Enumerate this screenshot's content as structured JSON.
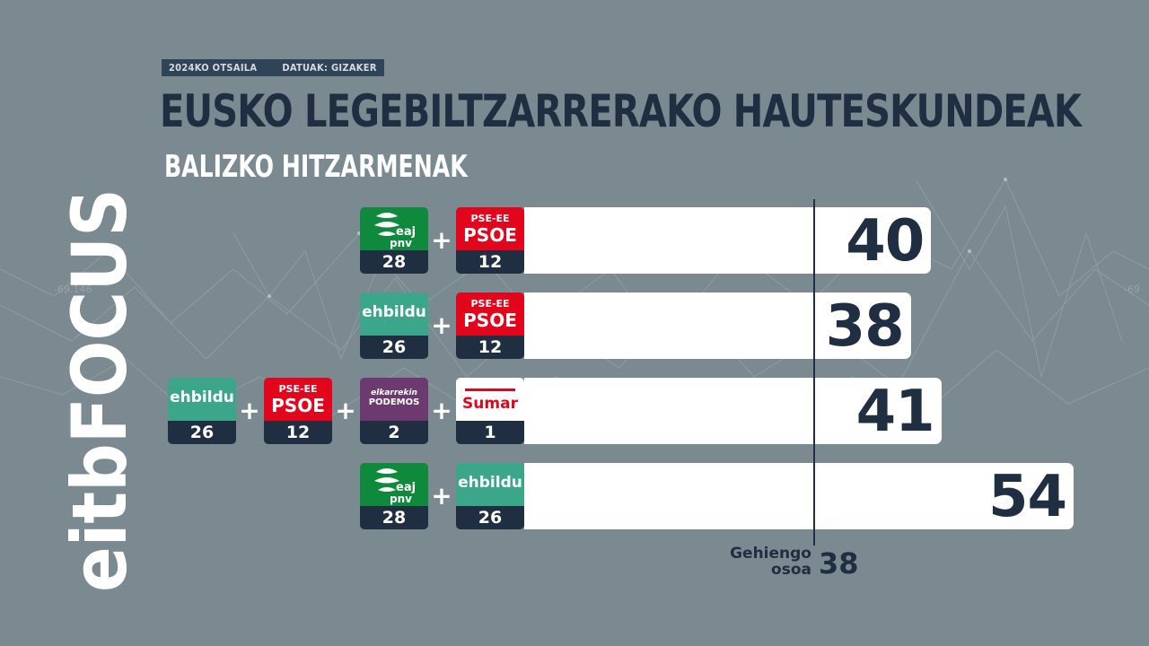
{
  "header": {
    "date": "2024KO OTSAILA",
    "source": "DATUAK: GIZAKER",
    "title": "EUSKO LEGEBILTZARRERAKO HAUTESKUNDEAK",
    "subtitle": "BALIZKO HITZARMENAK"
  },
  "brand": {
    "logo_text": "eitbFOCUS",
    "color": "#ffffff"
  },
  "colors": {
    "background": "#7b8991",
    "dark": "#1f2e40",
    "pnv": "#0f8a3c",
    "psoe": "#e3051b",
    "bildu": "#3ca68a",
    "podemos": "#6c3a6e",
    "sumar": "#e3051b"
  },
  "parties": {
    "pnv": {
      "logo_lines": [
        "eaj",
        "pnv"
      ]
    },
    "psoe": {
      "logo_lines": [
        "PSE-EE",
        "PSOE"
      ]
    },
    "bildu": {
      "logo_text": "ehbildu"
    },
    "podemos": {
      "logo_lines": [
        "elkarrekin",
        "PODEMOS"
      ]
    },
    "sumar": {
      "logo_text": "Sumar"
    }
  },
  "majority": {
    "label_line1": "Gehiengo",
    "label_line2": "osoa",
    "value": 38
  },
  "chart_data": {
    "type": "bar",
    "title": "BALIZKO HITZARMENAK",
    "xlim": [
      0,
      54
    ],
    "reference_line": 38,
    "rows": [
      {
        "members": [
          {
            "party": "pnv",
            "seats": 28
          },
          {
            "party": "psoe",
            "seats": 12
          }
        ],
        "total": 40
      },
      {
        "members": [
          {
            "party": "bildu",
            "seats": 26
          },
          {
            "party": "psoe",
            "seats": 12
          }
        ],
        "total": 38
      },
      {
        "members": [
          {
            "party": "bildu",
            "seats": 26
          },
          {
            "party": "psoe",
            "seats": 12
          },
          {
            "party": "podemos",
            "seats": 2
          },
          {
            "party": "sumar",
            "seats": 1
          }
        ],
        "total": 41
      },
      {
        "members": [
          {
            "party": "pnv",
            "seats": 28
          },
          {
            "party": "bildu",
            "seats": 26
          }
        ],
        "total": 54
      }
    ]
  }
}
